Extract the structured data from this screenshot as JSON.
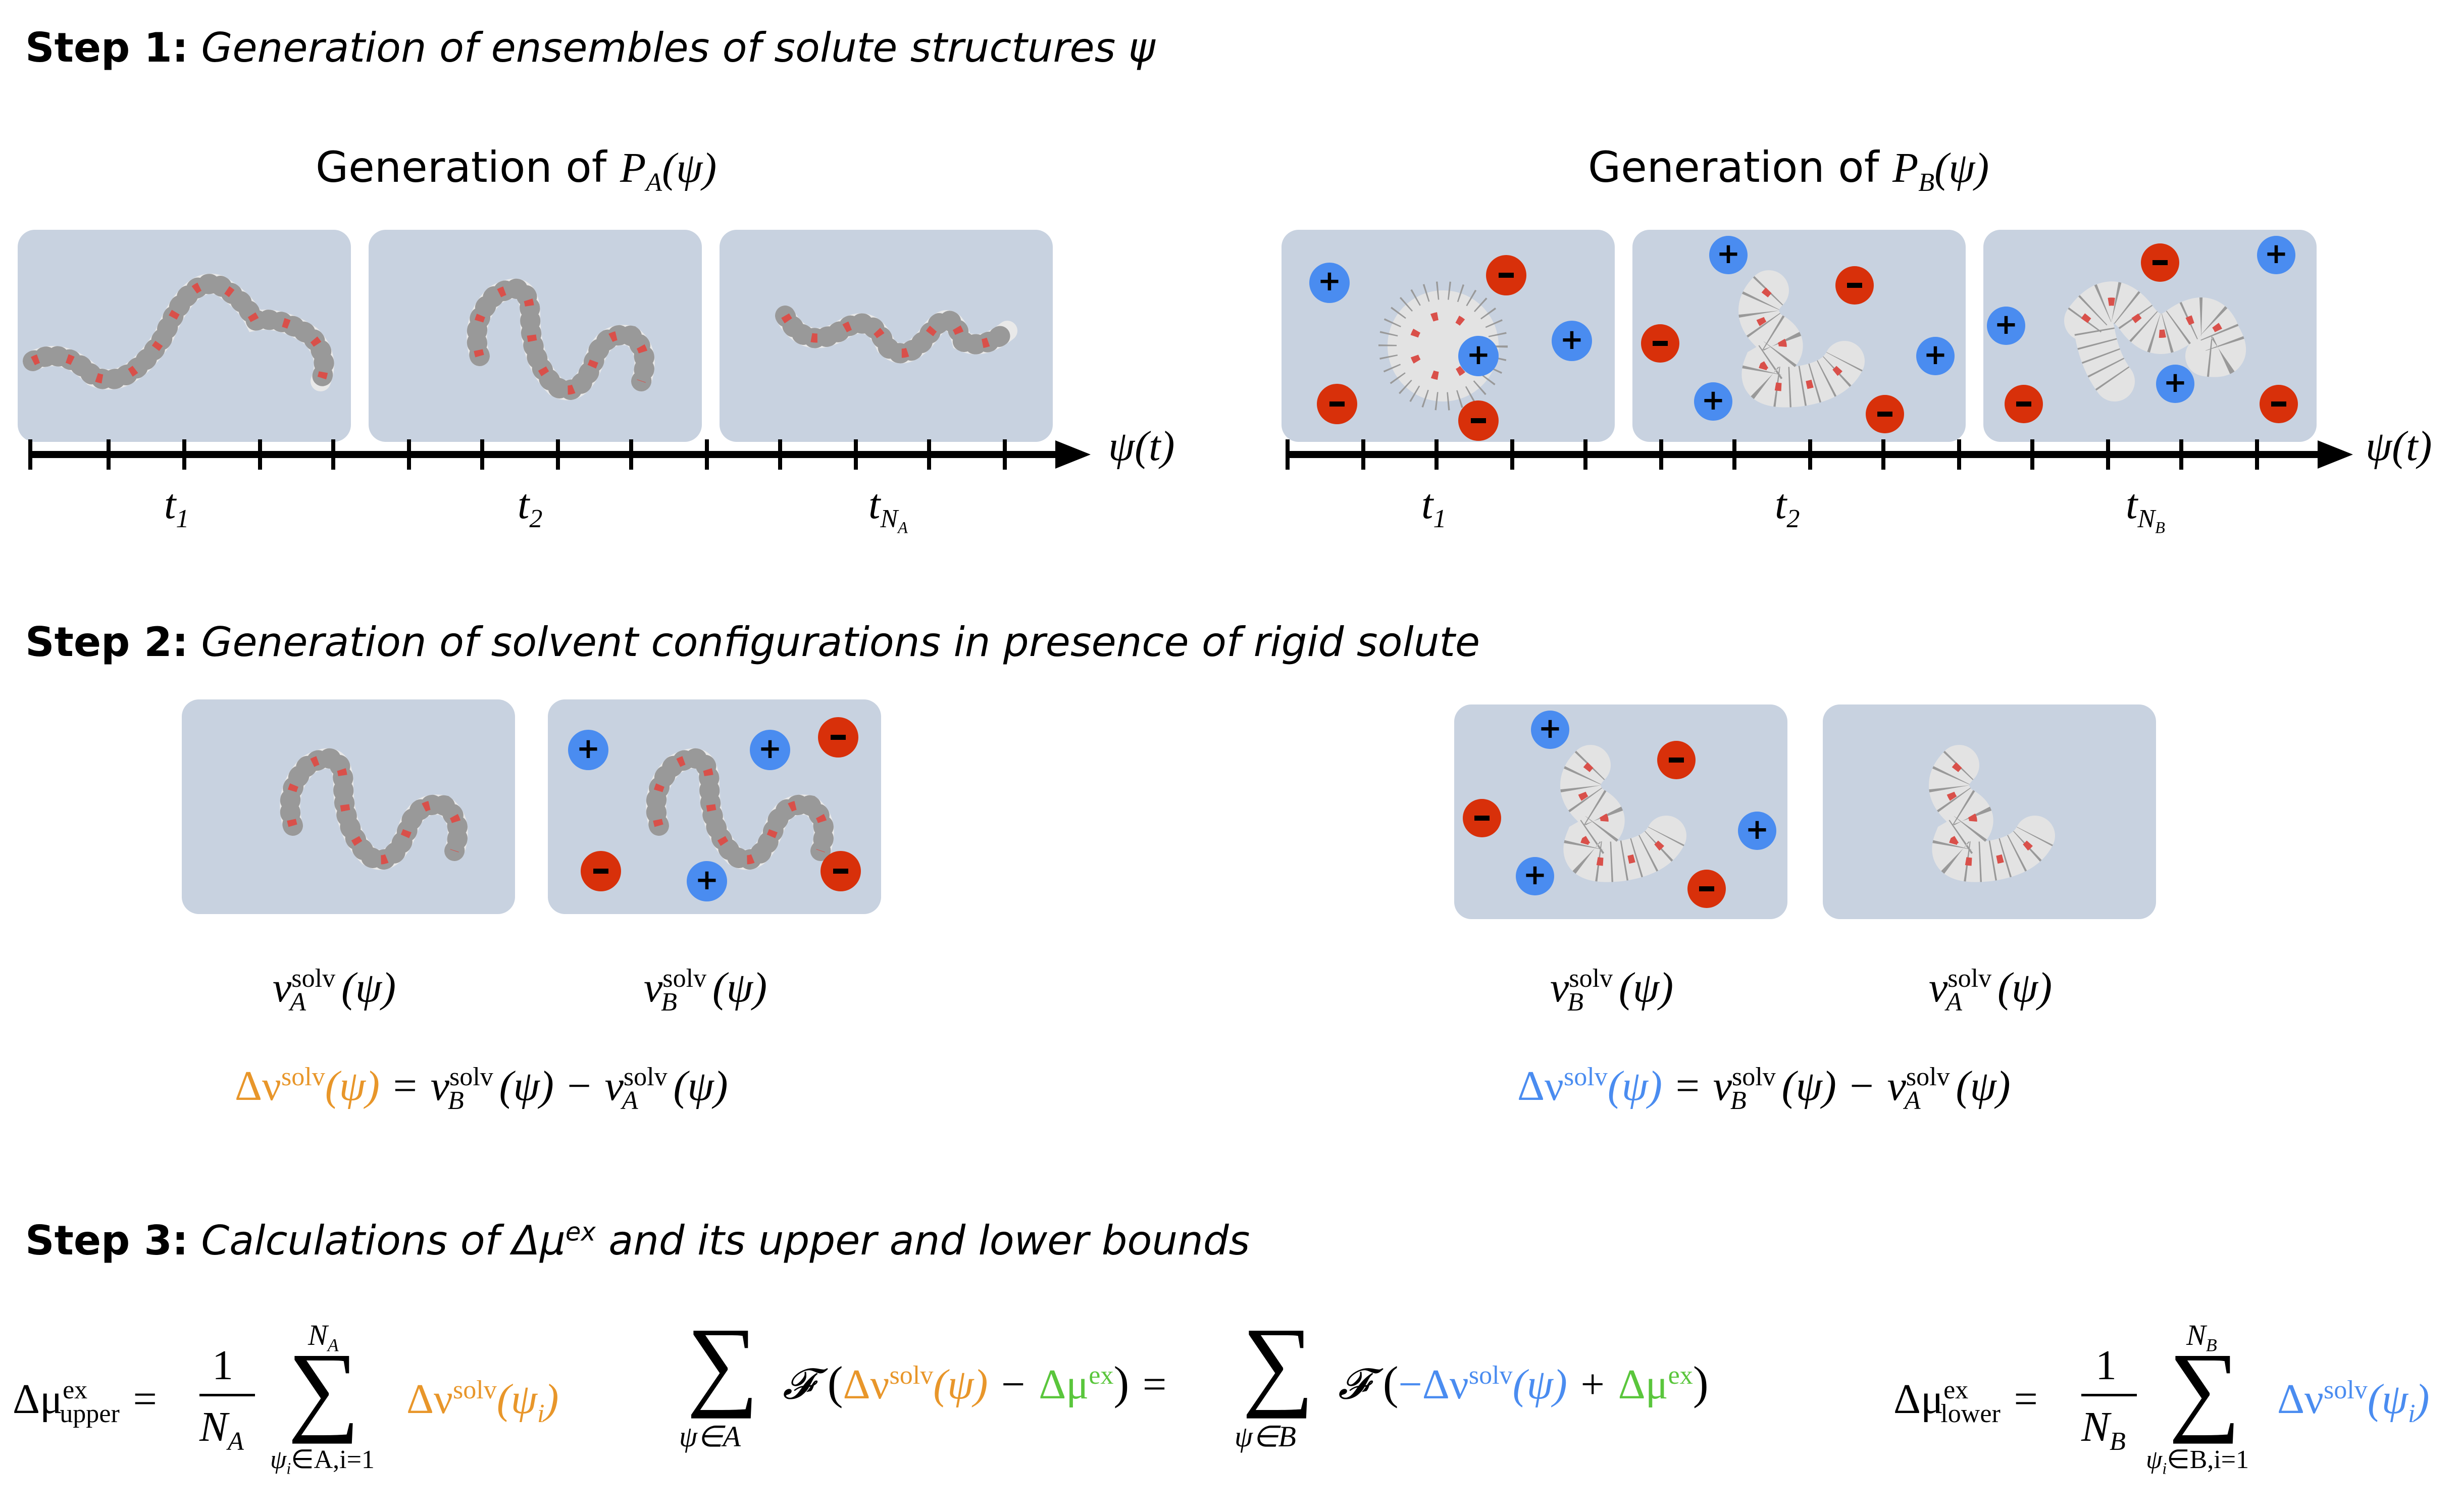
{
  "step1": {
    "label": "Step 1:",
    "text": "Generation of ensembles of solute structures ψ"
  },
  "step2": {
    "label": "Step 2:",
    "text": "Generation of solvent configurations in presence of rigid solute"
  },
  "step3": {
    "label": "Step 3:",
    "text_pre": "Calculations of Δμ",
    "text_sup": "ex",
    "text_post": " and its upper and lower bounds"
  },
  "left": {
    "title_pre": "Generation of ",
    "title_P": "P",
    "title_sub": "A",
    "title_arg": "(ψ)",
    "axis_label": "ψ(t)",
    "ticks": [
      {
        "t": "t",
        "s": "1"
      },
      {
        "t": "t",
        "s": "2"
      },
      {
        "t": "t",
        "s": "N",
        "ss": "A"
      }
    ]
  },
  "right": {
    "title_pre": "Generation of ",
    "title_P": "P",
    "title_sub": "B",
    "title_arg": "(ψ)",
    "axis_label": "ψ(t)",
    "ticks": [
      {
        "t": "t",
        "s": "1"
      },
      {
        "t": "t",
        "s": "2"
      },
      {
        "t": "t",
        "s": "N",
        "ss": "B"
      }
    ]
  },
  "step2_labels": {
    "nu": "ν",
    "solv": "solv",
    "arg": "(ψ)",
    "A": "A",
    "B": "B",
    "delta": "Δν",
    "eq": "=",
    "minus": "−"
  },
  "step3_eqs": {
    "upper_lhs": "Δμ",
    "upper_sub": "upper",
    "ex": "ex",
    "lower_sub": "lower",
    "one": "1",
    "NA": "N",
    "NA_sub": "A",
    "NB": "N",
    "NB_sub": "B",
    "sum_upper_A": "N",
    "sum_upper_A_sub": "A",
    "sum_lower_A": "ψ",
    "sum_lower_A_rest": "∈A,i=1",
    "sum_lower_B_rest": "∈B,i=1",
    "sigma": "∑",
    "psi_in_A": "ψ∈A",
    "psi_in_B": "ψ∈B",
    "F": "𝓕",
    "term_psi_i": "(ψ",
    "term_i": "i",
    "equals": "="
  },
  "colors": {
    "panel": "#c8d2e0",
    "plus": "#4a8cf0",
    "minus": "#d8300a",
    "orange": "#e8962a",
    "blue": "#4a8cf0",
    "green": "#5ac63c"
  }
}
